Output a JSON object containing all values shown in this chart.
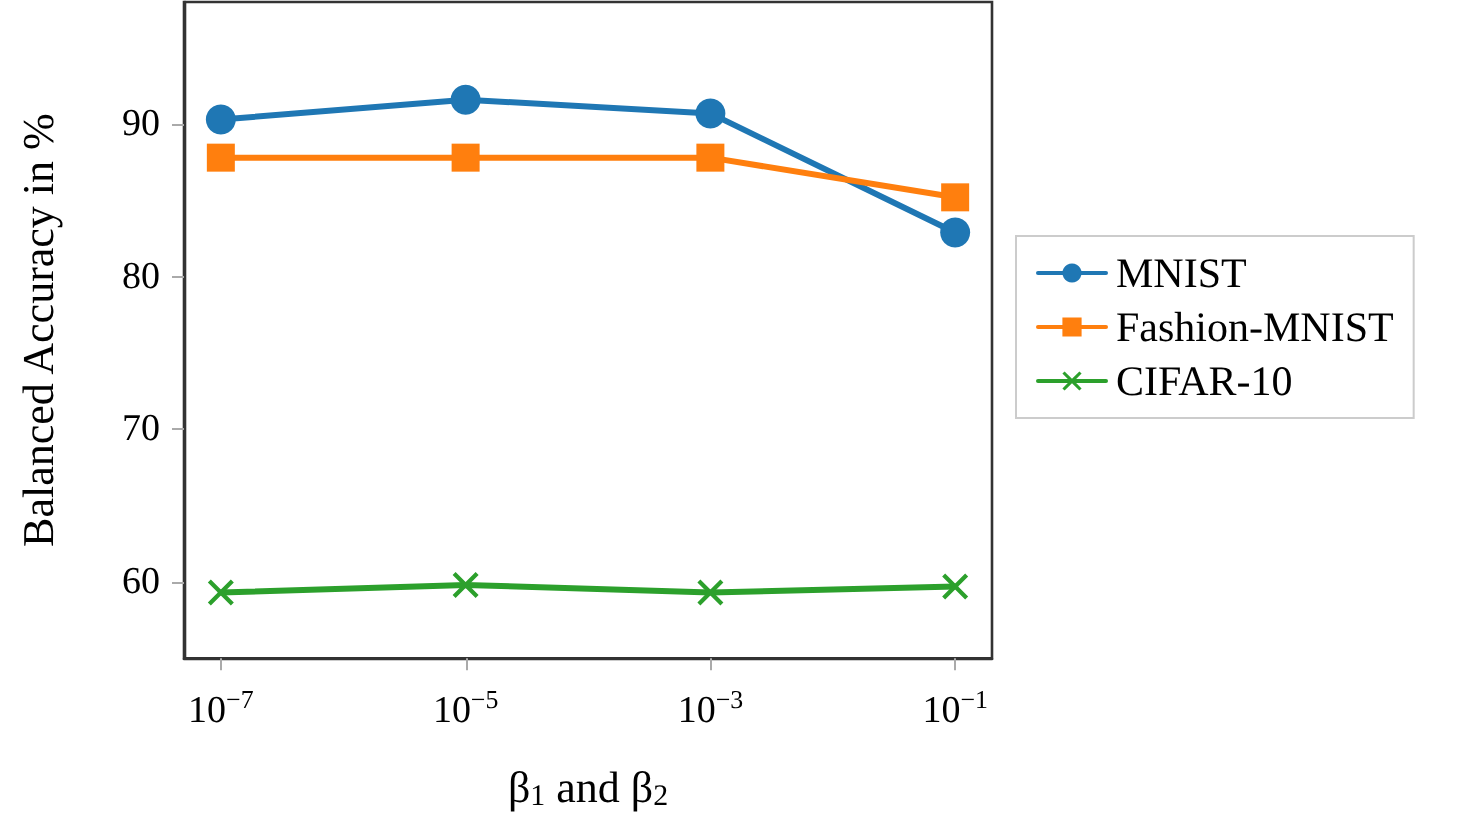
{
  "chart_data": {
    "type": "line",
    "xlabel": "β$_{1}$ and β$_{2}$",
    "ylabel": "Balanced Accuracy in %",
    "x": [
      1e-07,
      1e-05,
      0.001,
      0.1
    ],
    "series": [
      {
        "name": "MNIST",
        "color": "#1f77b4",
        "marker": "circle",
        "values": [
          90.3,
          91.6,
          90.7,
          82.9
        ]
      },
      {
        "name": "Fashion-MNIST",
        "color": "#ff7f0e",
        "marker": "square",
        "values": [
          87.8,
          87.8,
          87.8,
          85.2
        ]
      },
      {
        "name": "CIFAR-10",
        "color": "#2ca02c",
        "marker": "cross",
        "values": [
          59.3,
          59.8,
          59.3,
          59.7
        ]
      }
    ],
    "log": "x",
    "xlim": [
      5e-08,
      0.2
    ],
    "xticks": [
      {
        "value": 1e-07,
        "label": "10$^{−7}$"
      },
      {
        "value": 1e-05,
        "label": "10$^{−5}$"
      },
      {
        "value": 0.001,
        "label": "10$^{−3}$"
      },
      {
        "value": 0.1,
        "label": "10$^{−1}$"
      }
    ],
    "ylim": [
      55,
      98
    ],
    "yticks": [
      60,
      70,
      80,
      90
    ],
    "grid": false,
    "legend": "right",
    "line_style": "solid"
  }
}
